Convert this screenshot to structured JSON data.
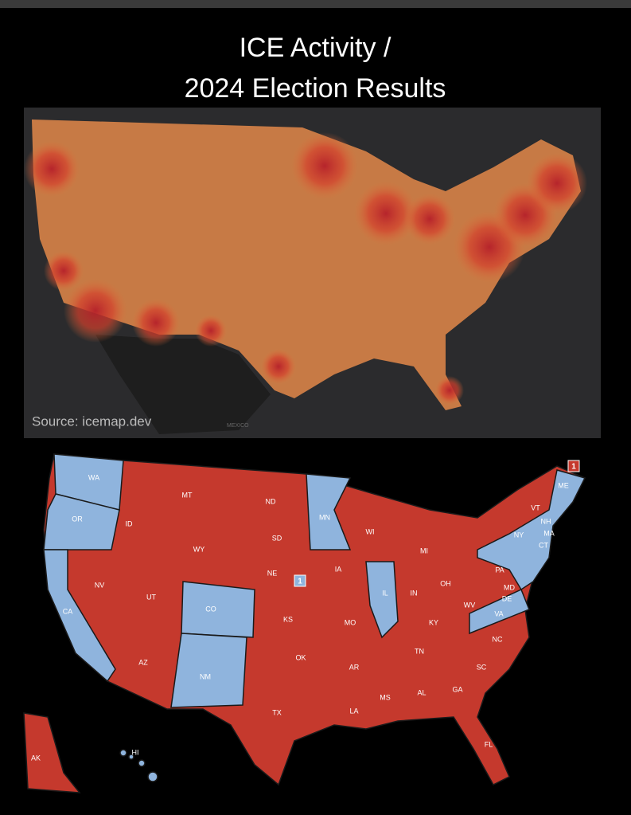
{
  "title": [
    "ICE Activity /",
    "2024 Election Results"
  ],
  "heatmap": {
    "source": "Source: icemap.dev",
    "country_label": "MEXICO"
  },
  "election_map": {
    "colors": {
      "blue": "#8fb4dd",
      "red": "#c5392d"
    },
    "states": [
      {
        "label": "WA",
        "color": "blue"
      },
      {
        "label": "OR",
        "color": "blue"
      },
      {
        "label": "CA",
        "color": "blue"
      },
      {
        "label": "ID",
        "color": "red"
      },
      {
        "label": "NV",
        "color": "red"
      },
      {
        "label": "MT",
        "color": "red"
      },
      {
        "label": "WY",
        "color": "red"
      },
      {
        "label": "UT",
        "color": "red"
      },
      {
        "label": "AZ",
        "color": "red"
      },
      {
        "label": "CO",
        "color": "blue"
      },
      {
        "label": "NM",
        "color": "blue"
      },
      {
        "label": "ND",
        "color": "red"
      },
      {
        "label": "SD",
        "color": "red"
      },
      {
        "label": "NE",
        "color": "red"
      },
      {
        "label": "KS",
        "color": "red"
      },
      {
        "label": "OK",
        "color": "red"
      },
      {
        "label": "TX",
        "color": "red"
      },
      {
        "label": "MN",
        "color": "blue"
      },
      {
        "label": "IA",
        "color": "red"
      },
      {
        "label": "MO",
        "color": "red"
      },
      {
        "label": "AR",
        "color": "red"
      },
      {
        "label": "LA",
        "color": "red"
      },
      {
        "label": "WI",
        "color": "red"
      },
      {
        "label": "IL",
        "color": "blue"
      },
      {
        "label": "MI",
        "color": "red"
      },
      {
        "label": "IN",
        "color": "red"
      },
      {
        "label": "OH",
        "color": "red"
      },
      {
        "label": "KY",
        "color": "red"
      },
      {
        "label": "TN",
        "color": "red"
      },
      {
        "label": "MS",
        "color": "red"
      },
      {
        "label": "AL",
        "color": "red"
      },
      {
        "label": "GA",
        "color": "red"
      },
      {
        "label": "FL",
        "color": "red"
      },
      {
        "label": "SC",
        "color": "red"
      },
      {
        "label": "NC",
        "color": "red"
      },
      {
        "label": "VA",
        "color": "blue"
      },
      {
        "label": "WV",
        "color": "red"
      },
      {
        "label": "PA",
        "color": "red"
      },
      {
        "label": "NY",
        "color": "blue"
      },
      {
        "label": "ME",
        "color": "blue"
      },
      {
        "label": "VT",
        "color": "blue"
      },
      {
        "label": "NH",
        "color": "blue"
      },
      {
        "label": "MA",
        "color": "blue"
      },
      {
        "label": "CT",
        "color": "blue"
      },
      {
        "label": "MD",
        "color": "blue"
      },
      {
        "label": "DE",
        "color": "blue"
      },
      {
        "label": "AK",
        "color": "red"
      },
      {
        "label": "HI",
        "color": "blue"
      }
    ],
    "badges": [
      {
        "label": "1",
        "color": "blue"
      },
      {
        "label": "1",
        "color": "red"
      }
    ]
  }
}
